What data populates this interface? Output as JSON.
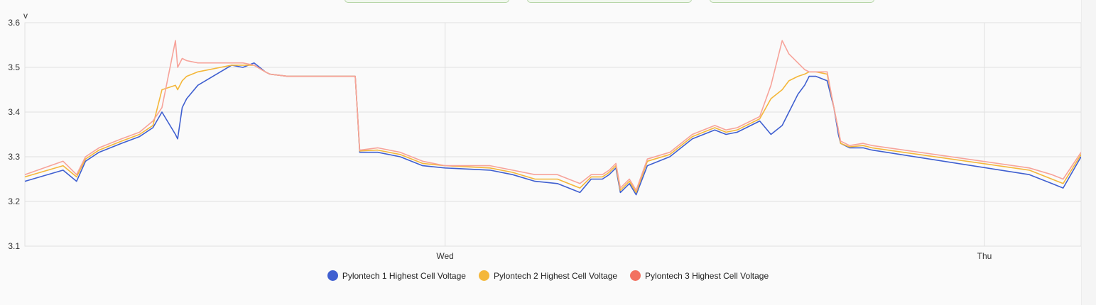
{
  "chart_data": {
    "type": "line",
    "unit": "v",
    "ylim": [
      3.1,
      3.6
    ],
    "yticks": [
      "3.6",
      "3.5",
      "3.4",
      "3.3",
      "3.2",
      "3.1"
    ],
    "xticks": [
      {
        "label": "Wed",
        "x": 24
      },
      {
        "label": "Thu",
        "x": 48
      }
    ],
    "xlim": [
      5.3,
      52.3
    ],
    "grid": true,
    "legend_position": "bottom",
    "series": [
      {
        "name": "Pylontech 1 Highest Cell Voltage",
        "color": "#3f5fd0",
        "x": [
          5.3,
          7.0,
          7.6,
          8.0,
          8.6,
          9.6,
          10.4,
          11.0,
          11.4,
          12.0,
          12.1,
          12.3,
          12.5,
          13.0,
          14.5,
          15.0,
          15.5,
          16.0,
          16.2,
          17.0,
          20.0,
          20.1,
          20.2,
          21.0,
          22.0,
          23.0,
          24.0,
          26.0,
          27.0,
          28.0,
          29.0,
          30.0,
          30.5,
          31.0,
          31.3,
          31.6,
          31.8,
          32.2,
          32.5,
          33.0,
          34.0,
          35.0,
          36.0,
          36.5,
          37.0,
          38.0,
          38.5,
          39.0,
          39.3,
          39.7,
          40.0,
          40.2,
          40.5,
          41.0,
          41.3,
          41.5,
          41.6,
          42.0,
          42.6,
          43.0,
          50.0,
          51.0,
          51.5,
          52.3
        ],
        "y": [
          3.245,
          3.27,
          3.245,
          3.29,
          3.31,
          3.33,
          3.345,
          3.365,
          3.4,
          3.35,
          3.34,
          3.41,
          3.43,
          3.46,
          3.505,
          3.5,
          3.51,
          3.49,
          3.485,
          3.48,
          3.48,
          3.4,
          3.31,
          3.31,
          3.3,
          3.28,
          3.275,
          3.27,
          3.26,
          3.245,
          3.24,
          3.22,
          3.25,
          3.25,
          3.26,
          3.275,
          3.22,
          3.24,
          3.215,
          3.28,
          3.3,
          3.34,
          3.36,
          3.35,
          3.355,
          3.38,
          3.35,
          3.37,
          3.4,
          3.44,
          3.46,
          3.48,
          3.48,
          3.47,
          3.41,
          3.35,
          3.33,
          3.32,
          3.32,
          3.315,
          3.26,
          3.24,
          3.23,
          3.3
        ]
      },
      {
        "name": "Pylontech 2 Highest Cell Voltage",
        "color": "#f4b73a",
        "x": [
          5.3,
          7.0,
          7.6,
          8.0,
          8.6,
          9.6,
          10.4,
          11.0,
          11.4,
          12.0,
          12.1,
          12.3,
          12.5,
          13.0,
          14.5,
          15.0,
          15.5,
          16.0,
          16.2,
          17.0,
          20.0,
          20.1,
          20.2,
          21.0,
          22.0,
          23.0,
          24.0,
          26.0,
          27.0,
          28.0,
          29.0,
          30.0,
          30.5,
          31.0,
          31.3,
          31.6,
          31.8,
          32.2,
          32.5,
          33.0,
          34.0,
          35.0,
          36.0,
          36.5,
          37.0,
          38.0,
          38.5,
          39.0,
          39.3,
          39.7,
          40.0,
          40.2,
          40.5,
          41.0,
          41.3,
          41.5,
          41.6,
          42.0,
          42.6,
          43.0,
          50.0,
          51.0,
          51.5,
          52.3
        ],
        "y": [
          3.255,
          3.28,
          3.255,
          3.295,
          3.315,
          3.335,
          3.35,
          3.37,
          3.45,
          3.46,
          3.45,
          3.47,
          3.48,
          3.49,
          3.505,
          3.505,
          3.505,
          3.49,
          3.485,
          3.48,
          3.48,
          3.4,
          3.313,
          3.315,
          3.305,
          3.285,
          3.28,
          3.275,
          3.265,
          3.25,
          3.25,
          3.23,
          3.255,
          3.255,
          3.265,
          3.28,
          3.225,
          3.245,
          3.22,
          3.29,
          3.305,
          3.345,
          3.365,
          3.355,
          3.36,
          3.385,
          3.43,
          3.45,
          3.47,
          3.48,
          3.485,
          3.49,
          3.49,
          3.485,
          3.41,
          3.36,
          3.33,
          3.322,
          3.325,
          3.32,
          3.27,
          3.25,
          3.24,
          3.305
        ]
      },
      {
        "name": "Pylontech 3 Highest Cell Voltage",
        "color": "#f27160",
        "x": [
          5.3,
          7.0,
          7.6,
          8.0,
          8.6,
          9.6,
          10.4,
          11.0,
          11.4,
          12.0,
          12.1,
          12.3,
          12.5,
          13.0,
          14.5,
          15.0,
          15.5,
          16.0,
          16.2,
          17.0,
          20.0,
          20.1,
          20.2,
          21.0,
          22.0,
          23.0,
          24.0,
          26.0,
          27.0,
          28.0,
          29.0,
          30.0,
          30.5,
          31.0,
          31.3,
          31.6,
          31.8,
          32.2,
          32.5,
          33.0,
          34.0,
          35.0,
          36.0,
          36.5,
          37.0,
          38.0,
          38.5,
          39.0,
          39.3,
          39.7,
          40.0,
          40.2,
          40.5,
          41.0,
          41.3,
          41.5,
          41.6,
          42.0,
          42.6,
          43.0,
          50.0,
          51.0,
          51.5,
          52.3
        ],
        "y": [
          3.26,
          3.29,
          3.26,
          3.3,
          3.32,
          3.34,
          3.355,
          3.38,
          3.41,
          3.56,
          3.5,
          3.52,
          3.515,
          3.51,
          3.51,
          3.51,
          3.505,
          3.49,
          3.485,
          3.48,
          3.48,
          3.4,
          3.315,
          3.32,
          3.31,
          3.29,
          3.28,
          3.28,
          3.27,
          3.26,
          3.26,
          3.24,
          3.26,
          3.26,
          3.27,
          3.285,
          3.23,
          3.25,
          3.225,
          3.295,
          3.31,
          3.35,
          3.37,
          3.36,
          3.365,
          3.39,
          3.46,
          3.56,
          3.53,
          3.51,
          3.495,
          3.49,
          3.49,
          3.49,
          3.41,
          3.36,
          3.335,
          3.325,
          3.33,
          3.325,
          3.275,
          3.26,
          3.25,
          3.31
        ]
      }
    ]
  },
  "legend": {
    "items": [
      {
        "label": "Pylontech 1 Highest Cell Voltage",
        "color": "#3f5fd0"
      },
      {
        "label": "Pylontech 2 Highest Cell Voltage",
        "color": "#f4b73a"
      },
      {
        "label": "Pylontech 3 Highest Cell Voltage",
        "color": "#f27160"
      }
    ]
  }
}
